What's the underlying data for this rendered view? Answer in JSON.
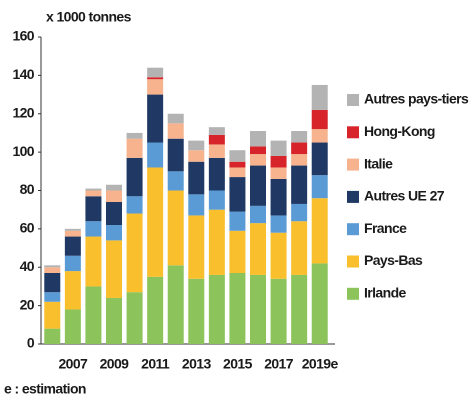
{
  "chart_data": {
    "type": "stacked_bar",
    "y_label": "x 1000 tonnes",
    "footnote": "e : estimation",
    "categories": [
      null,
      "2007",
      null,
      "2009",
      null,
      "2011",
      null,
      "2013",
      null,
      "2015",
      null,
      "2017",
      null,
      "2019e"
    ],
    "series": [
      {
        "name": "Irlande",
        "color": "#8cc35a",
        "values": [
          8,
          18,
          30,
          24,
          27,
          35,
          41,
          34,
          36,
          37,
          36,
          34,
          36,
          42
        ]
      },
      {
        "name": "Pays-Bas",
        "color": "#f9bf2d",
        "values": [
          14,
          20,
          26,
          30,
          41,
          57,
          39,
          33,
          34,
          22,
          27,
          24,
          28,
          34
        ]
      },
      {
        "name": "France",
        "color": "#5a9bd5",
        "values": [
          5,
          8,
          8,
          8,
          9,
          13,
          10,
          11,
          10,
          10,
          9,
          9,
          9,
          12
        ]
      },
      {
        "name": "Autres UE 27",
        "color": "#1f3864",
        "values": [
          10,
          10,
          13,
          12,
          20,
          25,
          17,
          17,
          17,
          18,
          21,
          19,
          20,
          17
        ]
      },
      {
        "name": "Italie",
        "color": "#f6b38e",
        "values": [
          3,
          3,
          3,
          6,
          10,
          8,
          8,
          6,
          7,
          5,
          6,
          6,
          6,
          7
        ]
      },
      {
        "name": "Hong-Kong",
        "color": "#d7242a",
        "values": [
          0,
          0,
          0,
          0,
          0,
          1,
          0,
          0,
          5,
          3,
          4,
          6,
          6,
          10
        ]
      },
      {
        "name": "Autres pays-tiers",
        "color": "#b3b3b3",
        "values": [
          1,
          1,
          1,
          3,
          3,
          5,
          5,
          5,
          4,
          6,
          8,
          8,
          6,
          13
        ]
      }
    ],
    "ylim": [
      0,
      160
    ],
    "yticks": [
      0,
      20,
      40,
      60,
      80,
      100,
      120,
      140,
      160
    ],
    "legend": "right"
  }
}
